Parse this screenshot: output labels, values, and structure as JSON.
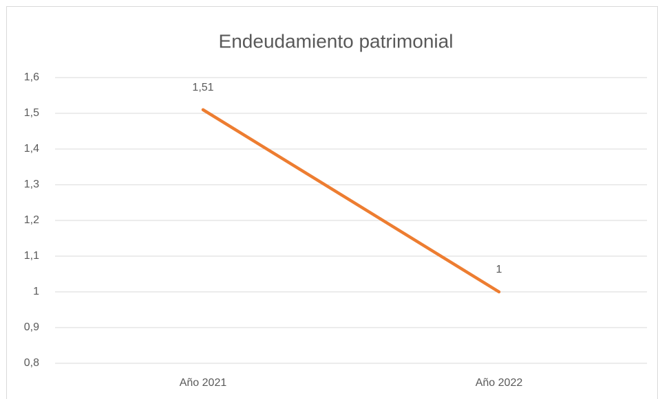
{
  "chart_data": {
    "type": "line",
    "title": "Endeudamiento patrimonial",
    "categories": [
      "Año 2021",
      "Año 2022"
    ],
    "values": [
      1.51,
      1
    ],
    "value_labels": [
      "1,51",
      "1"
    ],
    "color": "#ED7D31",
    "ylim": [
      0.8,
      1.6
    ],
    "yticks": [
      {
        "value": 0.8,
        "label": "0,8"
      },
      {
        "value": 0.9,
        "label": "0,9"
      },
      1,
      {
        "value": 1.1,
        "label": "1,1"
      },
      {
        "value": 1.2,
        "label": "1,2"
      },
      {
        "value": 1.3,
        "label": "1,3"
      },
      {
        "value": 1.4,
        "label": "1,4"
      },
      {
        "value": 1.5,
        "label": "1,5"
      },
      {
        "value": 1.6,
        "label": "1,6"
      }
    ],
    "grid": true
  }
}
